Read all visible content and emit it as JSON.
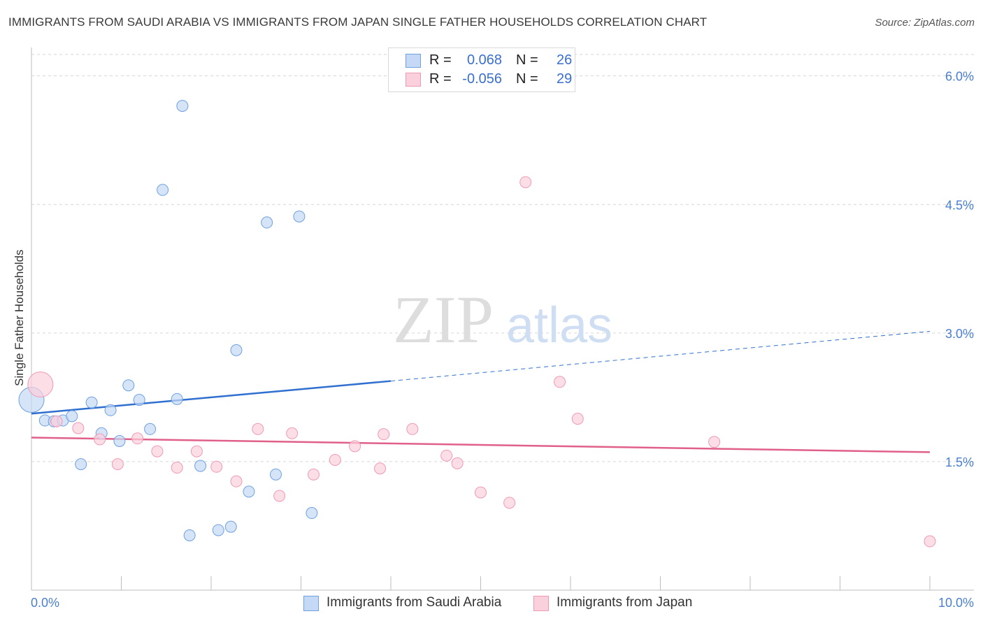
{
  "chart_data": {
    "type": "scatter",
    "title": "IMMIGRANTS FROM SAUDI ARABIA VS IMMIGRANTS FROM JAPAN SINGLE FATHER HOUSEHOLDS CORRELATION CHART",
    "source": "Source: ZipAtlas.com",
    "ylabel": "Single Father Households",
    "xlabel": "",
    "xlim": [
      0,
      10
    ],
    "ylim": [
      0,
      6.25
    ],
    "x_tick_labels": [
      "0.0%",
      "10.0%"
    ],
    "y_ticks": [
      1.5,
      3.0,
      4.5,
      6.0
    ],
    "y_tick_labels": [
      "1.5%",
      "3.0%",
      "4.5%",
      "6.0%"
    ],
    "watermark": {
      "zip": "ZIP",
      "atlas": "atlas"
    },
    "legend": [
      {
        "r_label": "R =",
        "r_value": "0.068",
        "n_label": "N =",
        "n_value": "26"
      },
      {
        "r_label": "R =",
        "r_value": "-0.056",
        "n_label": "N =",
        "n_value": "29"
      }
    ],
    "series": [
      {
        "name": "Immigrants from Saudi Arabia",
        "color": "#6fa0e0",
        "fill": "#c5d9f4",
        "trend": {
          "x0": 0.0,
          "y0": 2.06,
          "x1": 4.0,
          "y1": 2.44,
          "x_end": 10.0,
          "y_end": 3.02,
          "color": "#2f6fd0"
        },
        "points": [
          {
            "x": 0.0,
            "y": 2.22,
            "big": true
          },
          {
            "x": 0.15,
            "y": 1.98
          },
          {
            "x": 0.25,
            "y": 1.97
          },
          {
            "x": 0.35,
            "y": 1.98
          },
          {
            "x": 0.45,
            "y": 2.03
          },
          {
            "x": 0.55,
            "y": 1.47
          },
          {
            "x": 0.67,
            "y": 2.19
          },
          {
            "x": 0.78,
            "y": 1.83
          },
          {
            "x": 0.88,
            "y": 2.1
          },
          {
            "x": 0.98,
            "y": 1.74
          },
          {
            "x": 1.08,
            "y": 2.39
          },
          {
            "x": 1.2,
            "y": 2.22
          },
          {
            "x": 1.32,
            "y": 1.88
          },
          {
            "x": 1.46,
            "y": 4.67
          },
          {
            "x": 1.62,
            "y": 2.23
          },
          {
            "x": 1.68,
            "y": 5.65
          },
          {
            "x": 1.76,
            "y": 0.64
          },
          {
            "x": 1.88,
            "y": 1.45
          },
          {
            "x": 2.08,
            "y": 0.7
          },
          {
            "x": 2.22,
            "y": 0.74
          },
          {
            "x": 2.28,
            "y": 2.8
          },
          {
            "x": 2.42,
            "y": 1.15
          },
          {
            "x": 2.62,
            "y": 4.29
          },
          {
            "x": 2.72,
            "y": 1.35
          },
          {
            "x": 2.98,
            "y": 4.36
          },
          {
            "x": 3.12,
            "y": 0.9
          }
        ]
      },
      {
        "name": "Immigrants from Japan",
        "color": "#ef9ab5",
        "fill": "#fbd0dd",
        "trend": {
          "x0": 0.0,
          "y0": 1.78,
          "x1": 10.0,
          "y1": 1.61,
          "color": "#e0608a"
        },
        "points": [
          {
            "x": 0.1,
            "y": 2.4,
            "big": true
          },
          {
            "x": 0.28,
            "y": 1.97
          },
          {
            "x": 0.52,
            "y": 1.89
          },
          {
            "x": 0.76,
            "y": 1.76
          },
          {
            "x": 0.96,
            "y": 1.47
          },
          {
            "x": 1.18,
            "y": 1.77
          },
          {
            "x": 1.4,
            "y": 1.62
          },
          {
            "x": 1.62,
            "y": 1.43
          },
          {
            "x": 1.84,
            "y": 1.62
          },
          {
            "x": 2.06,
            "y": 1.44
          },
          {
            "x": 2.28,
            "y": 1.27
          },
          {
            "x": 2.52,
            "y": 1.88
          },
          {
            "x": 2.76,
            "y": 1.1
          },
          {
            "x": 2.9,
            "y": 1.83
          },
          {
            "x": 3.14,
            "y": 1.35
          },
          {
            "x": 3.38,
            "y": 1.52
          },
          {
            "x": 3.6,
            "y": 1.68
          },
          {
            "x": 3.88,
            "y": 1.42
          },
          {
            "x": 3.92,
            "y": 1.82
          },
          {
            "x": 4.24,
            "y": 1.88
          },
          {
            "x": 4.62,
            "y": 1.57
          },
          {
            "x": 4.74,
            "y": 1.48
          },
          {
            "x": 5.0,
            "y": 1.14
          },
          {
            "x": 5.32,
            "y": 1.02
          },
          {
            "x": 5.5,
            "y": 4.76
          },
          {
            "x": 5.88,
            "y": 2.43
          },
          {
            "x": 6.08,
            "y": 2.0
          },
          {
            "x": 7.6,
            "y": 1.73
          },
          {
            "x": 10.0,
            "y": 0.57
          }
        ]
      }
    ]
  }
}
